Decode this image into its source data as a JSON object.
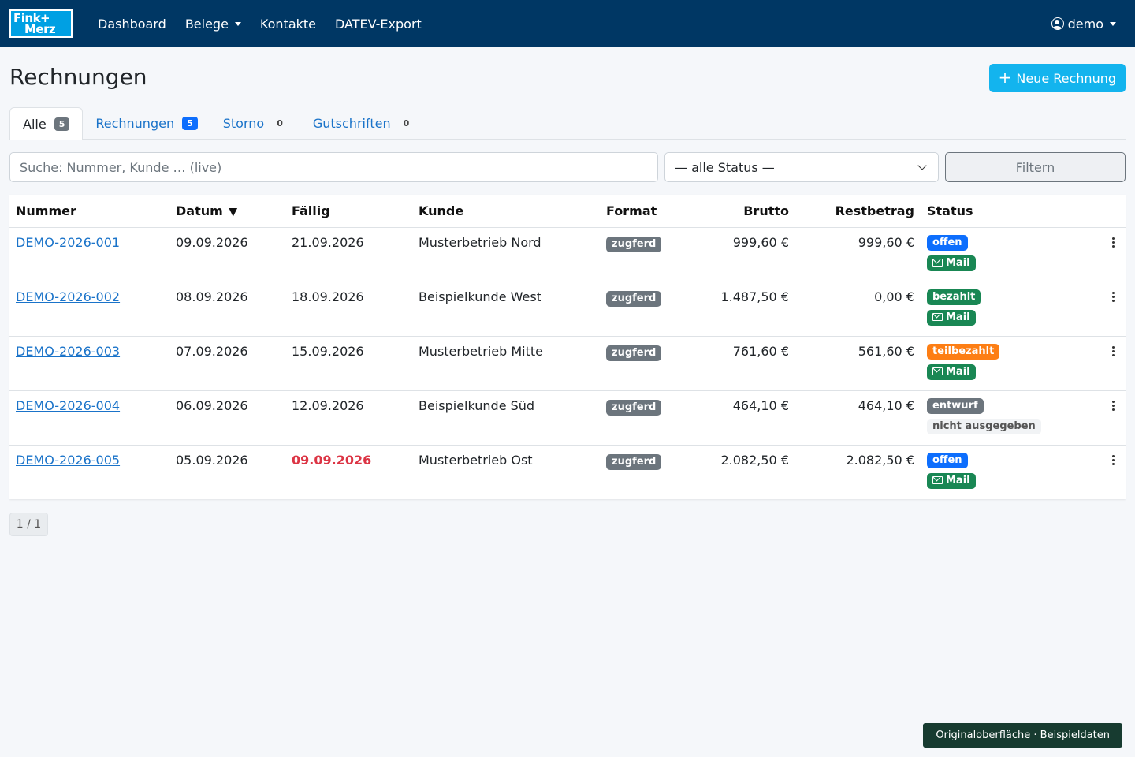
{
  "nav": {
    "logo": {
      "line1": "Fink+",
      "line2": "Merz"
    },
    "links": [
      "Dashboard",
      "Belege",
      "Kontakte",
      "DATEV-Export"
    ],
    "user": "demo"
  },
  "header": {
    "title": "Rechnungen",
    "new_button": "Neue Rechnung"
  },
  "tabs": [
    {
      "label": "Alle",
      "count": "5"
    },
    {
      "label": "Rechnungen",
      "count": "5"
    },
    {
      "label": "Storno",
      "count": "0"
    },
    {
      "label": "Gutschriften",
      "count": "0"
    }
  ],
  "filter": {
    "search_placeholder": "Suche: Nummer, Kunde … (live)",
    "status_value": "— alle Status —",
    "button": "Filtern"
  },
  "table": {
    "headers": {
      "nummer": "Nummer",
      "datum": "Datum",
      "sort_arrow": "▼",
      "faellig": "Fällig",
      "kunde": "Kunde",
      "format": "Format",
      "brutto": "Brutto",
      "rest": "Restbetrag",
      "status": "Status"
    },
    "rows": [
      {
        "nummer": "DEMO-2026-001",
        "datum": "09.09.2026",
        "faellig": "21.09.2026",
        "kunde": "Musterbetrieb Nord",
        "format": "zugferd",
        "brutto": "999,60 €",
        "rest": "999,60 €",
        "status": "offen",
        "sub": "Mail"
      },
      {
        "nummer": "DEMO-2026-002",
        "datum": "08.09.2026",
        "faellig": "18.09.2026",
        "kunde": "Beispielkunde West",
        "format": "zugferd",
        "brutto": "1.487,50 €",
        "rest": "0,00 €",
        "status": "bezahlt",
        "sub": "Mail"
      },
      {
        "nummer": "DEMO-2026-003",
        "datum": "07.09.2026",
        "faellig": "15.09.2026",
        "kunde": "Musterbetrieb Mitte",
        "format": "zugferd",
        "brutto": "761,60 €",
        "rest": "561,60 €",
        "status": "teilbezahlt",
        "sub": "Mail"
      },
      {
        "nummer": "DEMO-2026-004",
        "datum": "06.09.2026",
        "faellig": "12.09.2026",
        "kunde": "Beispielkunde Süd",
        "format": "zugferd",
        "brutto": "464,10 €",
        "rest": "464,10 €",
        "status": "entwurf",
        "sub": "nicht ausgegeben"
      },
      {
        "nummer": "DEMO-2026-005",
        "datum": "05.09.2026",
        "faellig": "09.09.2026",
        "kunde": "Musterbetrieb Ost",
        "format": "zugferd",
        "brutto": "2.082,50 €",
        "rest": "2.082,50 €",
        "status": "offen",
        "sub": "Mail"
      }
    ]
  },
  "pager": "1 / 1",
  "footer_note": "Originaloberfläche · Beispieldaten",
  "colors": {
    "navbar": "#003764",
    "accent": "#13b4ee",
    "offen": "#0d6efd",
    "bezahlt": "#198754",
    "teilbezahlt": "#fd7e14",
    "entwurf": "#6c757d",
    "overdue": "#dc3545"
  }
}
